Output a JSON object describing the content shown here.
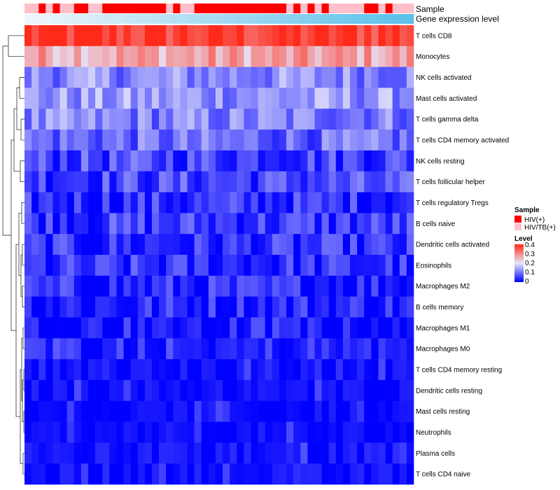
{
  "chart_data": {
    "type": "heatmap",
    "title": "",
    "row_labels": [
      "T cells CD8",
      "Monocytes",
      "NK cells activated",
      "Mast cells activated",
      "T cells gamma delta",
      "T cells CD4 memory activated",
      "NK cells resting",
      "T cells follicular helper",
      "T cells regulatory  Tregs",
      "B cells naive",
      "Dendritic cells activated",
      "Eosinophils",
      "Macrophages M2",
      "B cells memory",
      "Macrophages M1",
      "Macrophages M0",
      "T cells CD4 memory resting",
      "Dendritic cells resting",
      "Mast cells resting",
      "Neutrophils",
      "Plasma cells",
      "T cells CD4 naive"
    ],
    "row_typical_levels": [
      0.38,
      0.27,
      0.12,
      0.13,
      0.11,
      0.09,
      0.06,
      0.06,
      0.04,
      0.05,
      0.035,
      0.035,
      0.03,
      0.03,
      0.02,
      0.02,
      0.01,
      0.01,
      0.005,
      0.005,
      0.015,
      0.01
    ],
    "n_samples": 55,
    "annotations": {
      "sample_title": "Sample",
      "gene_expression_title": "Gene expression level",
      "sample_groups": [
        {
          "name": "HIV(+)",
          "color": "#ff0000"
        },
        {
          "name": "HIV/TB(+)",
          "color": "#ffc0cb"
        }
      ],
      "sample_pattern": "BBRBRBBRRBBRRRRRRRRRBRBBRRRRRRRRRRRRRBRBRBRBBBBBRRBRBBB",
      "gene_expression_gradient": [
        "#eef6fb",
        "#5bc0ea"
      ]
    },
    "legend": {
      "sample_title": "Sample",
      "level_title": "Level",
      "level_ticks": [
        "0.4",
        "0.3",
        "0.2",
        "0.1",
        "0"
      ],
      "level_colors": [
        "#0000ff",
        "#e6e6fa",
        "#ff2a1a"
      ],
      "placement": "right"
    },
    "scale": {
      "min": 0,
      "max": 0.4
    },
    "dendrogram": "rows"
  }
}
